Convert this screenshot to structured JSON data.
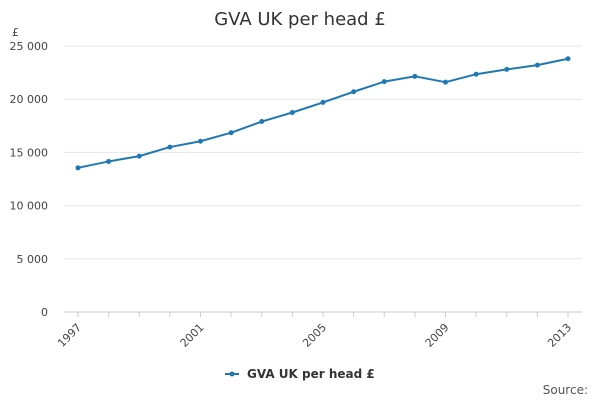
{
  "chart_data": {
    "type": "line",
    "title": "GVA UK per head £",
    "y_unit": "£",
    "x": [
      1997,
      1998,
      1999,
      2000,
      2001,
      2002,
      2003,
      2004,
      2005,
      2006,
      2007,
      2008,
      2009,
      2010,
      2011,
      2012,
      2013
    ],
    "x_tick_labels": [
      "1997",
      "2001",
      "2005",
      "2009",
      "2013"
    ],
    "x_tick_values": [
      1997,
      2001,
      2005,
      2009,
      2013
    ],
    "series": [
      {
        "name": "GVA UK per head £",
        "color": "#1f78b4",
        "values": [
          13550,
          14150,
          14650,
          15500,
          16050,
          16850,
          17900,
          18750,
          19700,
          20700,
          21650,
          22150,
          21600,
          22350,
          22800,
          23200,
          23800
        ]
      }
    ],
    "y_tick_values": [
      0,
      5000,
      10000,
      15000,
      20000,
      25000
    ],
    "y_tick_labels": [
      "0",
      "5 000",
      "10 000",
      "15 000",
      "20 000",
      "25 000"
    ],
    "ylim": [
      0,
      25000
    ],
    "xlim": [
      1997,
      2013
    ],
    "grid": true,
    "legend_position": "bottom"
  },
  "source_label": "Source:"
}
